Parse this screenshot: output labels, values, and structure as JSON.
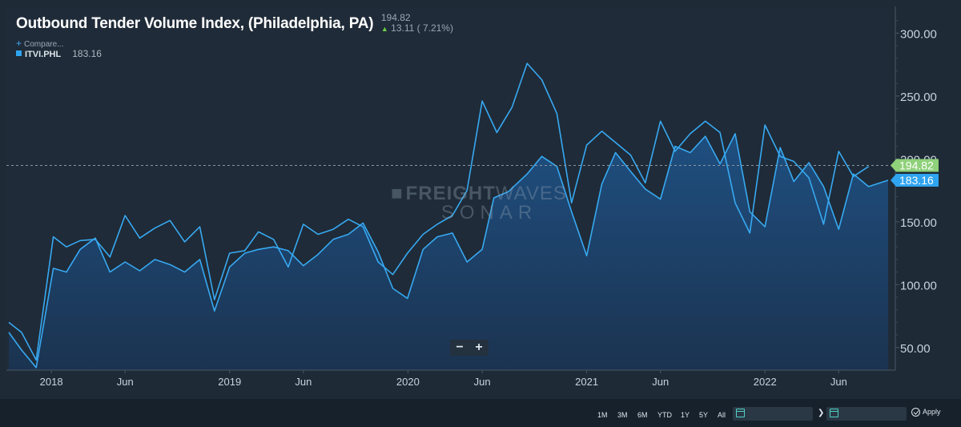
{
  "header": {
    "title": "Outbound Tender Volume Index, (Philadelphia, PA)",
    "last_value": "194.82",
    "change": "13.11 ( 7.21%)",
    "compare_label": "Compare..."
  },
  "legend": {
    "series_name": "ITVI.PHL",
    "series_value": "183.16"
  },
  "watermark": {
    "line1_bold": "FREIGHT",
    "line1_thin": "WAVES",
    "line2": "SONAR"
  },
  "zoom": {
    "minus": "−",
    "plus": "+"
  },
  "range_buttons": [
    "1M",
    "3M",
    "6M",
    "YTD",
    "1Y",
    "5Y",
    "All"
  ],
  "apply_label": "Apply",
  "colors": {
    "line": "#37a9f2",
    "area_top": "#1f4f80",
    "area_bottom": "#1b3350",
    "last_value_badge": "#8fd17a",
    "series_badge": "#2fa4f0"
  },
  "chart_data": {
    "type": "area",
    "title": "Outbound Tender Volume Index, (Philadelphia, PA)",
    "ylim": [
      32,
      320
    ],
    "y_ticks": [
      50,
      100,
      150,
      200,
      250,
      300
    ],
    "y_tick_labels": [
      "50.00",
      "100.00",
      "150.00",
      "200.00",
      "250.00",
      "300.00"
    ],
    "x_range": [
      "2017-10-01",
      "2022-09-15"
    ],
    "x_ticks": [
      {
        "date": "2018-01-01",
        "label": "2018"
      },
      {
        "date": "2018-06-01",
        "label": "Jun"
      },
      {
        "date": "2019-01-01",
        "label": "2019"
      },
      {
        "date": "2019-06-01",
        "label": "Jun"
      },
      {
        "date": "2020-01-01",
        "label": "2020"
      },
      {
        "date": "2020-06-01",
        "label": "Jun"
      },
      {
        "date": "2021-01-01",
        "label": "2021"
      },
      {
        "date": "2021-06-01",
        "label": "Jun"
      },
      {
        "date": "2022-01-01",
        "label": "2022"
      },
      {
        "date": "2022-06-01",
        "label": "Jun"
      }
    ],
    "reference_value": 194.82,
    "reference_label": "194.82",
    "series": [
      {
        "name": "ITVI.PHL",
        "last_label": "183.16",
        "points": [
          [
            "2017-10-06",
            62
          ],
          [
            "2017-11-01",
            48
          ],
          [
            "2017-12-01",
            34
          ],
          [
            "2018-01-05",
            113
          ],
          [
            "2018-02-01",
            110
          ],
          [
            "2018-03-01",
            128
          ],
          [
            "2018-04-01",
            137
          ],
          [
            "2018-05-01",
            110
          ],
          [
            "2018-06-01",
            118
          ],
          [
            "2018-07-01",
            111
          ],
          [
            "2018-08-01",
            120
          ],
          [
            "2018-09-01",
            116
          ],
          [
            "2018-10-01",
            110
          ],
          [
            "2018-11-01",
            120
          ],
          [
            "2018-12-01",
            79
          ],
          [
            "2019-01-01",
            114
          ],
          [
            "2019-02-01",
            125
          ],
          [
            "2019-03-01",
            128
          ],
          [
            "2019-04-01",
            130
          ],
          [
            "2019-05-01",
            127
          ],
          [
            "2019-06-01",
            115
          ],
          [
            "2019-07-01",
            124
          ],
          [
            "2019-08-01",
            136
          ],
          [
            "2019-09-01",
            140
          ],
          [
            "2019-10-01",
            149
          ],
          [
            "2019-11-01",
            126
          ],
          [
            "2019-12-01",
            97
          ],
          [
            "2019-12-31",
            89
          ],
          [
            "2020-02-01",
            128
          ],
          [
            "2020-03-01",
            138
          ],
          [
            "2020-04-01",
            141
          ],
          [
            "2020-05-01",
            118
          ],
          [
            "2020-06-01",
            128
          ],
          [
            "2020-06-25",
            169
          ],
          [
            "2020-07-25",
            174
          ],
          [
            "2020-09-01",
            188
          ],
          [
            "2020-10-01",
            202
          ],
          [
            "2020-11-01",
            194
          ],
          [
            "2020-12-01",
            158
          ],
          [
            "2021-01-01",
            123
          ],
          [
            "2021-02-01",
            180
          ],
          [
            "2021-03-01",
            205
          ],
          [
            "2021-04-01",
            190
          ],
          [
            "2021-05-01",
            176
          ],
          [
            "2021-06-01",
            168
          ],
          [
            "2021-07-01",
            210
          ],
          [
            "2021-08-01",
            205
          ],
          [
            "2021-09-01",
            218
          ],
          [
            "2021-10-01",
            196
          ],
          [
            "2021-11-01",
            220
          ],
          [
            "2021-12-01",
            158
          ],
          [
            "2022-01-01",
            146
          ],
          [
            "2022-02-01",
            209
          ],
          [
            "2022-03-01",
            182
          ],
          [
            "2022-04-01",
            197
          ],
          [
            "2022-05-01",
            178
          ],
          [
            "2022-06-01",
            144
          ],
          [
            "2022-07-01",
            188
          ],
          [
            "2022-08-01",
            178
          ],
          [
            "2022-09-10",
            183
          ]
        ]
      },
      {
        "name": "",
        "points": [
          [
            "2017-10-06",
            70
          ],
          [
            "2017-11-01",
            62
          ],
          [
            "2017-12-01",
            40
          ],
          [
            "2018-01-05",
            138
          ],
          [
            "2018-02-01",
            130
          ],
          [
            "2018-03-01",
            135
          ],
          [
            "2018-04-01",
            136
          ],
          [
            "2018-05-01",
            122
          ],
          [
            "2018-06-01",
            155
          ],
          [
            "2018-07-01",
            137
          ],
          [
            "2018-08-01",
            145
          ],
          [
            "2018-09-01",
            151
          ],
          [
            "2018-10-01",
            134
          ],
          [
            "2018-11-01",
            146
          ],
          [
            "2018-12-01",
            88
          ],
          [
            "2019-01-01",
            125
          ],
          [
            "2019-02-01",
            127
          ],
          [
            "2019-03-01",
            142
          ],
          [
            "2019-04-01",
            136
          ],
          [
            "2019-05-01",
            114
          ],
          [
            "2019-06-01",
            148
          ],
          [
            "2019-07-01",
            140
          ],
          [
            "2019-08-01",
            144
          ],
          [
            "2019-09-01",
            152
          ],
          [
            "2019-10-01",
            146
          ],
          [
            "2019-11-01",
            118
          ],
          [
            "2019-12-01",
            108
          ],
          [
            "2019-12-31",
            125
          ],
          [
            "2020-02-01",
            140
          ],
          [
            "2020-03-01",
            148
          ],
          [
            "2020-04-01",
            155
          ],
          [
            "2020-05-01",
            175
          ],
          [
            "2020-06-01",
            246
          ],
          [
            "2020-07-01",
            221
          ],
          [
            "2020-08-01",
            241
          ],
          [
            "2020-09-01",
            276
          ],
          [
            "2020-10-01",
            263
          ],
          [
            "2020-11-01",
            236
          ],
          [
            "2020-12-01",
            165
          ],
          [
            "2021-01-01",
            211
          ],
          [
            "2021-02-01",
            222
          ],
          [
            "2021-03-01",
            213
          ],
          [
            "2021-04-01",
            203
          ],
          [
            "2021-05-01",
            181
          ],
          [
            "2021-06-01",
            230
          ],
          [
            "2021-07-01",
            206
          ],
          [
            "2021-08-01",
            220
          ],
          [
            "2021-09-01",
            230
          ],
          [
            "2021-10-01",
            221
          ],
          [
            "2021-11-01",
            165
          ],
          [
            "2021-12-01",
            141
          ],
          [
            "2022-01-01",
            227
          ],
          [
            "2022-02-01",
            202
          ],
          [
            "2022-03-01",
            198
          ],
          [
            "2022-04-01",
            185
          ],
          [
            "2022-05-01",
            148
          ],
          [
            "2022-06-01",
            206
          ],
          [
            "2022-07-01",
            186
          ],
          [
            "2022-08-01",
            194
          ]
        ]
      }
    ]
  }
}
